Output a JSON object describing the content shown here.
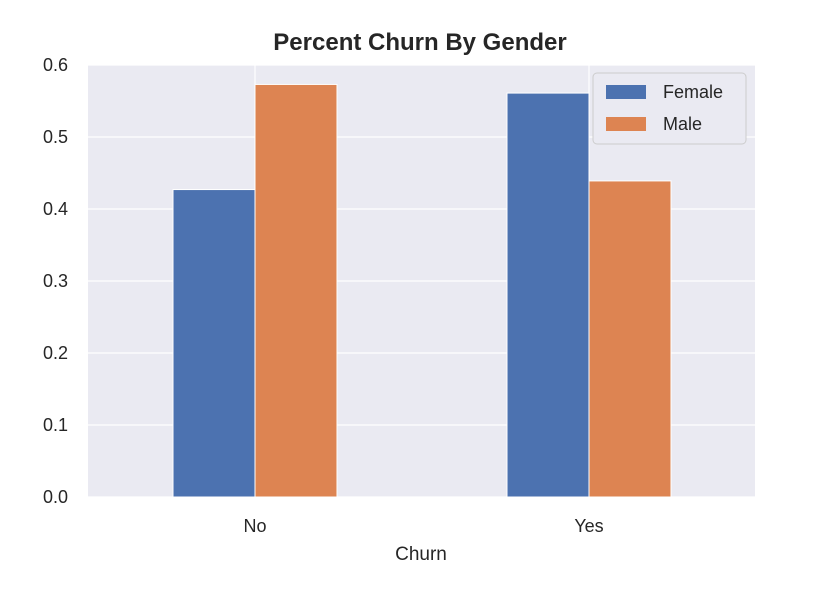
{
  "chart_data": {
    "type": "bar",
    "title": "Percent Churn By Gender",
    "xlabel": "Churn",
    "ylabel": "",
    "categories": [
      "No",
      "Yes"
    ],
    "series": [
      {
        "name": "Female",
        "values": [
          0.427,
          0.561
        ],
        "color": "#4c72b0"
      },
      {
        "name": "Male",
        "values": [
          0.573,
          0.439
        ],
        "color": "#dd8452"
      }
    ],
    "ylim": [
      0,
      0.6
    ],
    "yticks": [
      "0.0",
      "0.1",
      "0.2",
      "0.3",
      "0.4",
      "0.5",
      "0.6"
    ],
    "grid": true,
    "legend_position": "top-right",
    "background_color": "#eaeaf2"
  }
}
